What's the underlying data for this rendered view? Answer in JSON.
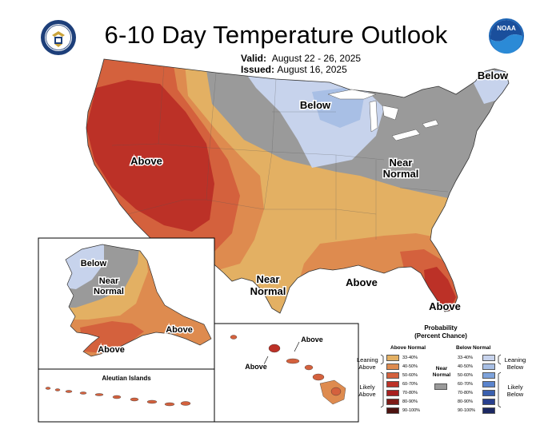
{
  "title": "6-10 Day Temperature Outlook",
  "valid_label": "Valid:",
  "valid_dates": "August 22 - 26, 2025",
  "issued_label": "Issued:",
  "issued_date": "August 16, 2025",
  "logos": {
    "left": "commerce-seal",
    "right": "noaa-logo",
    "noaa_text": "NOAA"
  },
  "regions": {
    "above_west": "Above",
    "below_northeast": "Below",
    "below_great_lakes": "Below",
    "near_normal_east": [
      "Near",
      "Normal"
    ],
    "near_normal_texas": [
      "Near",
      "Normal"
    ],
    "above_southeast": "Above",
    "above_florida": "Above"
  },
  "alaska": {
    "below": "Below",
    "near_normal": [
      "Near",
      "Normal"
    ],
    "above_south": "Above",
    "above_southeast": "Above"
  },
  "aleutian": "Aleutian Islands",
  "hawaii": {
    "above_1": "Above",
    "above_2": "Above"
  },
  "legend": {
    "title_line1": "Probability",
    "title_line2": "(Percent Chance)",
    "above_header": "Above Normal",
    "below_header": "Below Normal",
    "near_label": [
      "Near",
      "Normal"
    ],
    "leaning_above": [
      "Leaning",
      "Above"
    ],
    "likely_above": [
      "Likely",
      "Above"
    ],
    "leaning_below": [
      "Leaning",
      "Below"
    ],
    "likely_below": [
      "Likely",
      "Below"
    ],
    "ranges": [
      "33-40%",
      "40-50%",
      "50-60%",
      "60-70%",
      "70-80%",
      "80-90%",
      "90-100%"
    ],
    "above_colors": [
      "#e3b063",
      "#de8b4f",
      "#d4613d",
      "#bc3127",
      "#a71e1e",
      "#7d1a16",
      "#4d1310"
    ],
    "below_colors": [
      "#c7d3ec",
      "#a8bfe5",
      "#7ea3dc",
      "#5b84cd",
      "#3a5fae",
      "#283f8e",
      "#1c2863"
    ],
    "near_color": "#9a9a9a"
  }
}
